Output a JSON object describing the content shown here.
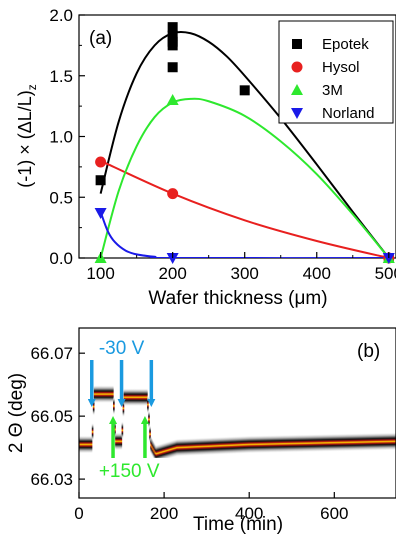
{
  "chart_data": [
    {
      "panel": "(a)",
      "type": "scatter",
      "xlabel": "Wafer thickness (μm)",
      "ylabel": "(-1) × (ΔL/L)",
      "ylabel_sub": "z",
      "xlim": [
        70,
        510
      ],
      "ylim": [
        0,
        2.0
      ],
      "xticks": [
        100,
        200,
        300,
        400,
        500
      ],
      "yticks": [
        0.0,
        0.5,
        1.0,
        1.5,
        2.0
      ],
      "ytick_labels": [
        "0.0",
        "0.5",
        "1.0",
        "1.5",
        "2.0"
      ],
      "legend_position": "top-right",
      "series": [
        {
          "name": "Epotek",
          "color": "#000000",
          "marker": "square",
          "points": [
            [
              100,
              0.64
            ],
            [
              200,
              1.9
            ],
            [
              200,
              1.83
            ],
            [
              200,
              1.78
            ],
            [
              200,
              1.75
            ],
            [
              200,
              1.57
            ],
            [
              300,
              1.38
            ],
            [
              500,
              0.0
            ]
          ],
          "fit": [
            [
              100,
              0.53
            ],
            [
              125,
              1.12
            ],
            [
              150,
              1.52
            ],
            [
              175,
              1.75
            ],
            [
              200,
              1.85
            ],
            [
              225,
              1.85
            ],
            [
              250,
              1.78
            ],
            [
              275,
              1.66
            ],
            [
              300,
              1.5
            ],
            [
              350,
              1.15
            ],
            [
              400,
              0.77
            ],
            [
              450,
              0.38
            ],
            [
              500,
              0.0
            ]
          ]
        },
        {
          "name": "Hysol",
          "color": "#e8201f",
          "marker": "circle",
          "points": [
            [
              100,
              0.79
            ],
            [
              200,
              0.53
            ],
            [
              500,
              0.0
            ]
          ],
          "fit": [
            [
              100,
              0.8
            ],
            [
              200,
              0.53
            ],
            [
              300,
              0.31
            ],
            [
              400,
              0.14
            ],
            [
              500,
              0.0
            ]
          ]
        },
        {
          "name": "3M",
          "color": "#2ee82e",
          "marker": "triangle-up",
          "points": [
            [
              100,
              0.0
            ],
            [
              200,
              1.3
            ],
            [
              500,
              0.0
            ]
          ],
          "fit": [
            [
              100,
              0.0
            ],
            [
              125,
              0.55
            ],
            [
              150,
              0.92
            ],
            [
              175,
              1.16
            ],
            [
              200,
              1.28
            ],
            [
              225,
              1.31
            ],
            [
              250,
              1.29
            ],
            [
              300,
              1.17
            ],
            [
              350,
              0.96
            ],
            [
              400,
              0.69
            ],
            [
              450,
              0.36
            ],
            [
              500,
              0.0
            ]
          ]
        },
        {
          "name": "Norland",
          "color": "#1a1ae8",
          "marker": "triangle-down",
          "points": [
            [
              100,
              0.37
            ],
            [
              200,
              0.0
            ],
            [
              500,
              0.0
            ]
          ],
          "fit": [
            [
              100,
              0.38
            ],
            [
              110,
              0.22
            ],
            [
              120,
              0.13
            ],
            [
              135,
              0.06
            ],
            [
              150,
              0.03
            ],
            [
              175,
              0.01
            ],
            [
              200,
              0.0
            ],
            [
              500,
              0.0
            ]
          ]
        }
      ]
    },
    {
      "panel": "(b)",
      "type": "heatmap",
      "xlabel": "Time (min)",
      "ylabel": "2 Θ (deg)",
      "xlim": [
        0,
        745
      ],
      "ylim": [
        66.024,
        66.078
      ],
      "xticks": [
        0,
        200,
        400,
        600
      ],
      "yticks": [
        66.03,
        66.05,
        66.07
      ],
      "ytick_labels": [
        "66.03",
        "66.05",
        "66.07"
      ],
      "colormap": [
        "#ffffff",
        "#000000",
        "#c81414",
        "#ffd200"
      ],
      "peak_position": [
        [
          0,
          66.041
        ],
        [
          30,
          66.041
        ],
        [
          35,
          66.057
        ],
        [
          80,
          66.057
        ],
        [
          85,
          66.042
        ],
        [
          100,
          66.042
        ],
        [
          105,
          66.056
        ],
        [
          160,
          66.056
        ],
        [
          168,
          66.041
        ],
        [
          180,
          66.038
        ],
        [
          230,
          66.04
        ],
        [
          400,
          66.041
        ],
        [
          745,
          66.042
        ]
      ],
      "annotations": [
        {
          "text": "-30 V",
          "color": "#1a9ae0",
          "arrow_times": [
            30,
            100,
            170
          ],
          "direction": "down"
        },
        {
          "text": "+150 V",
          "color": "#2ee82e",
          "arrow_times": [
            80,
            155
          ],
          "direction": "up"
        }
      ]
    }
  ]
}
